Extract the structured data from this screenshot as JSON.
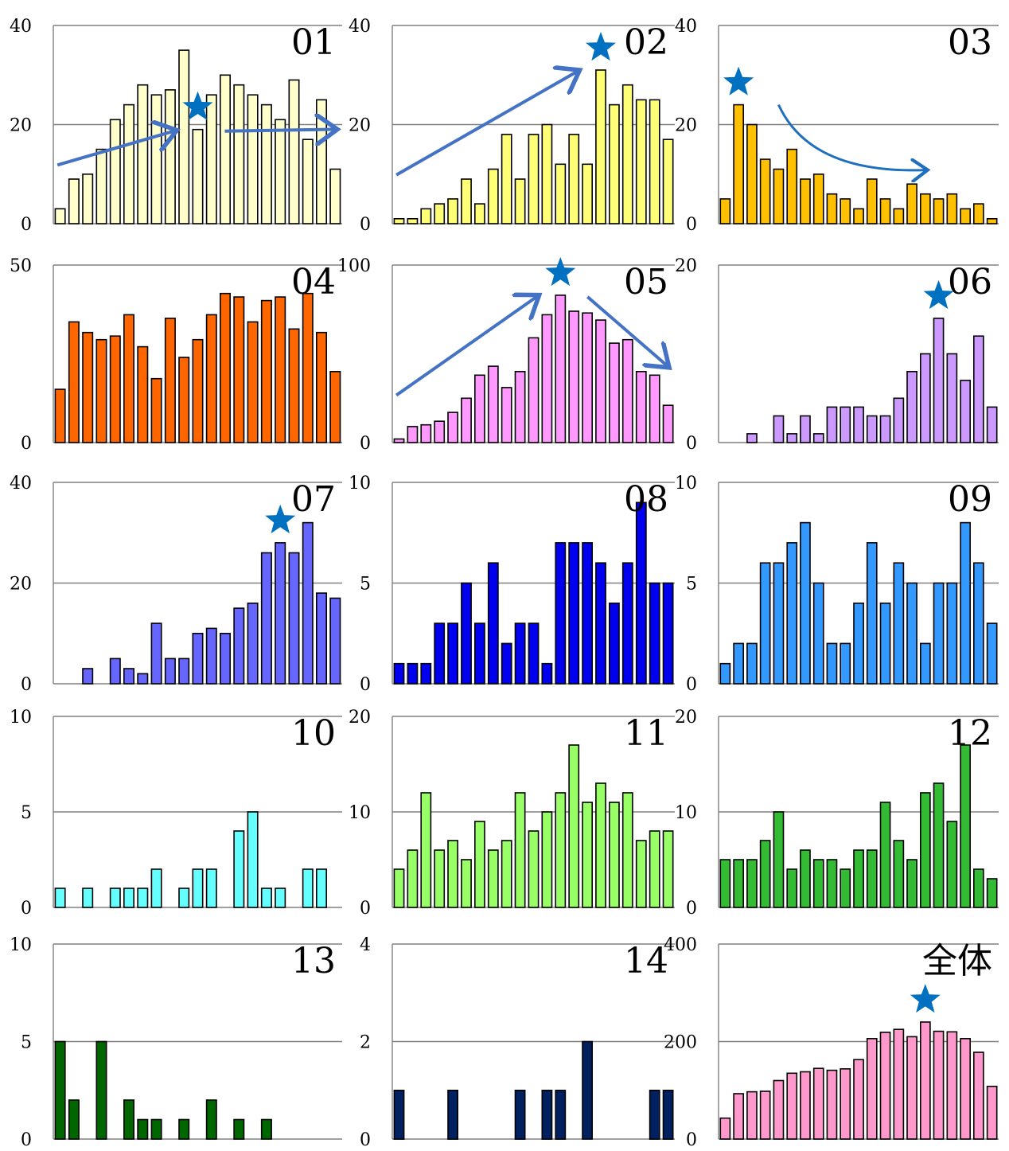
{
  "chart_data": [
    {
      "type": "bar",
      "title": "01",
      "ylim": [
        0,
        40
      ],
      "yticks": [
        0,
        20,
        40
      ],
      "color": "#FFFFCC",
      "values": [
        3,
        9,
        10,
        15,
        21,
        24,
        28,
        26,
        27,
        35,
        19,
        26,
        30,
        28,
        26,
        24,
        21,
        29,
        17,
        25,
        11
      ],
      "annotations": {
        "star_index": 10,
        "arrows": "up-then-down"
      }
    },
    {
      "type": "bar",
      "title": "02",
      "ylim": [
        0,
        40
      ],
      "yticks": [
        0,
        20,
        40
      ],
      "color": "#FFFF77",
      "values": [
        1,
        1,
        3,
        4,
        5,
        9,
        4,
        11,
        18,
        9,
        18,
        20,
        12,
        18,
        12,
        31,
        24,
        28,
        25,
        25,
        17
      ],
      "annotations": {
        "star_index": 15,
        "arrows": "up"
      }
    },
    {
      "type": "bar",
      "title": "03",
      "ylim": [
        0,
        40
      ],
      "yticks": [
        0,
        20,
        40
      ],
      "color": "#FFC000",
      "values": [
        5,
        24,
        20,
        13,
        11,
        15,
        9,
        10,
        6,
        5,
        3,
        9,
        5,
        3,
        8,
        6,
        5,
        6,
        3,
        4,
        1
      ],
      "annotations": {
        "star_index": 1,
        "arrows": "down-curve"
      }
    },
    {
      "type": "bar",
      "title": "04",
      "ylim": [
        0,
        50
      ],
      "yticks": [
        0,
        50
      ],
      "color": "#FF6600",
      "values": [
        15,
        34,
        31,
        29,
        30,
        36,
        27,
        18,
        35,
        24,
        29,
        36,
        42,
        41,
        34,
        40,
        41,
        32,
        42,
        31,
        20
      ]
    },
    {
      "type": "bar",
      "title": "05",
      "ylim": [
        0,
        100
      ],
      "yticks": [
        0,
        100
      ],
      "color": "#FF99FF",
      "values": [
        2,
        9,
        10,
        12,
        17,
        25,
        38,
        43,
        31,
        40,
        59,
        72,
        83,
        74,
        73,
        69,
        56,
        58,
        40,
        38,
        21
      ],
      "annotations": {
        "star_index": 12,
        "arrows": "up-then-down"
      }
    },
    {
      "type": "bar",
      "title": "06",
      "ylim": [
        0,
        20
      ],
      "yticks": [
        0,
        20
      ],
      "color": "#CC99FF",
      "values": [
        0,
        0,
        1,
        0,
        3,
        1,
        3,
        1,
        4,
        4,
        4,
        3,
        3,
        5,
        8,
        10,
        14,
        10,
        7,
        12,
        4
      ],
      "annotations": {
        "star_index": 16
      }
    },
    {
      "type": "bar",
      "title": "07",
      "ylim": [
        0,
        40
      ],
      "yticks": [
        0,
        20,
        40
      ],
      "color": "#6666FF",
      "values": [
        0,
        0,
        3,
        0,
        5,
        3,
        2,
        12,
        5,
        5,
        10,
        11,
        10,
        15,
        16,
        26,
        28,
        26,
        32,
        18,
        17
      ],
      "annotations": {
        "star_index": 16
      }
    },
    {
      "type": "bar",
      "title": "08",
      "ylim": [
        0,
        10
      ],
      "yticks": [
        0,
        5,
        10
      ],
      "color": "#0000EE",
      "values": [
        1,
        1,
        1,
        3,
        3,
        5,
        3,
        6,
        2,
        3,
        3,
        1,
        7,
        7,
        7,
        6,
        4,
        6,
        9,
        5,
        5
      ]
    },
    {
      "type": "bar",
      "title": "09",
      "ylim": [
        0,
        10
      ],
      "yticks": [
        0,
        5,
        10
      ],
      "color": "#3399FF",
      "values": [
        1,
        2,
        2,
        6,
        6,
        7,
        8,
        5,
        2,
        2,
        4,
        7,
        4,
        6,
        5,
        2,
        5,
        5,
        8,
        6,
        3
      ]
    },
    {
      "type": "bar",
      "title": "10",
      "ylim": [
        0,
        10
      ],
      "yticks": [
        0,
        5,
        10
      ],
      "color": "#66FFFF",
      "values": [
        1,
        0,
        1,
        0,
        1,
        1,
        1,
        2,
        0,
        1,
        2,
        2,
        0,
        4,
        5,
        1,
        1,
        0,
        2,
        2,
        0
      ]
    },
    {
      "type": "bar",
      "title": "11",
      "ylim": [
        0,
        20
      ],
      "yticks": [
        0,
        10,
        20
      ],
      "color": "#99FF66",
      "values": [
        4,
        6,
        12,
        6,
        7,
        5,
        9,
        6,
        7,
        12,
        8,
        10,
        12,
        17,
        11,
        13,
        11,
        12,
        7,
        8,
        8
      ]
    },
    {
      "type": "bar",
      "title": "12",
      "ylim": [
        0,
        20
      ],
      "yticks": [
        0,
        10,
        20
      ],
      "color": "#33BB33",
      "values": [
        5,
        5,
        5,
        7,
        10,
        4,
        6,
        5,
        5,
        4,
        6,
        6,
        11,
        7,
        5,
        12,
        13,
        9,
        17,
        4,
        3
      ]
    },
    {
      "type": "bar",
      "title": "13",
      "ylim": [
        0,
        10
      ],
      "yticks": [
        0,
        5,
        10
      ],
      "color": "#006600",
      "values": [
        5,
        2,
        0,
        5,
        0,
        2,
        1,
        1,
        0,
        1,
        0,
        2,
        0,
        1,
        0,
        1,
        0,
        0,
        0,
        0,
        0
      ]
    },
    {
      "type": "bar",
      "title": "14",
      "ylim": [
        0,
        4
      ],
      "yticks": [
        0,
        2,
        4
      ],
      "color": "#002060",
      "values": [
        1,
        0,
        0,
        0,
        1,
        0,
        0,
        0,
        0,
        1,
        0,
        1,
        1,
        0,
        2,
        0,
        0,
        0,
        0,
        1,
        1
      ]
    },
    {
      "type": "bar",
      "title": "全体",
      "ylim": [
        0,
        400
      ],
      "yticks": [
        0,
        200,
        400
      ],
      "color": "#FF99CC",
      "values": [
        43,
        93,
        97,
        98,
        120,
        135,
        138,
        145,
        141,
        144,
        163,
        206,
        219,
        225,
        210,
        240,
        221,
        220,
        206,
        178,
        108
      ],
      "annotations": {
        "star_index": 15
      }
    }
  ]
}
